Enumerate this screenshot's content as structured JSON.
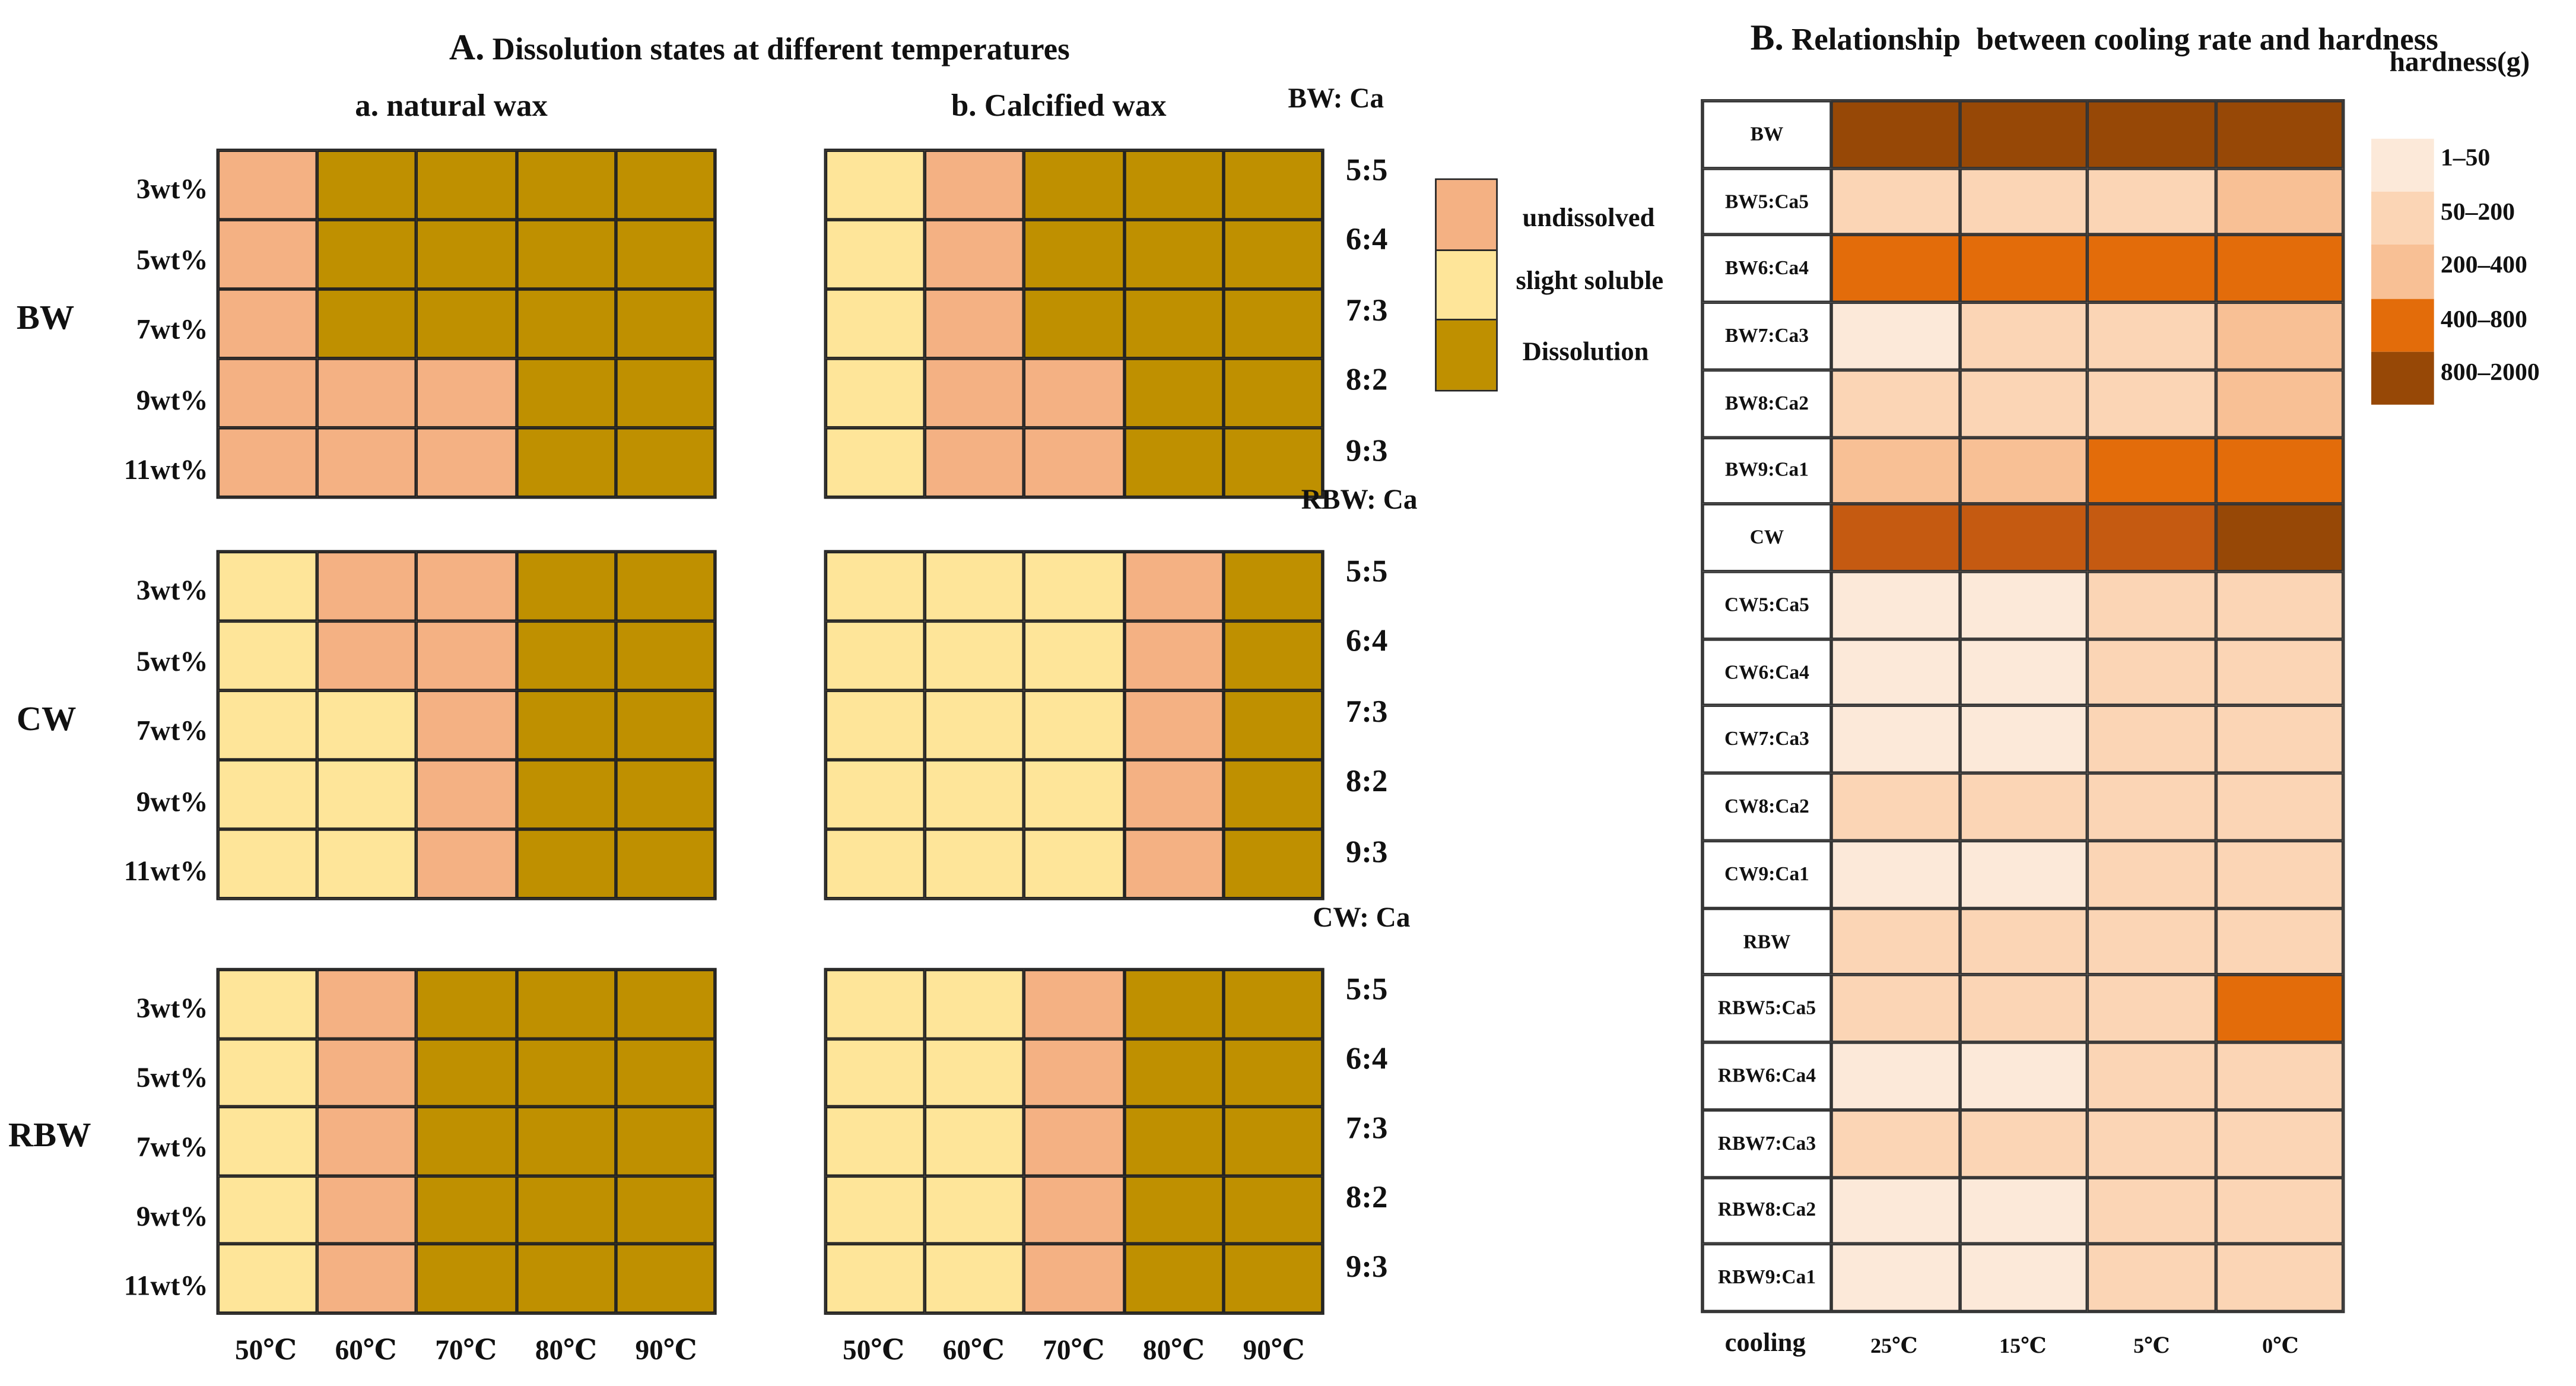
{
  "chart_data": [
    {
      "type": "heatmap",
      "panel": "A",
      "title_letter": "A.",
      "title": "Dissolution states at different temperatures",
      "legend": [
        {
          "code": "U",
          "label": "undissolved",
          "color": "#f4b183"
        },
        {
          "code": "S",
          "label": "slight soluble",
          "color": "#fee599"
        },
        {
          "code": "D",
          "label": "Dissolution",
          "color": "#bf9000"
        }
      ],
      "x_labels": [
        "50℃",
        "60℃",
        "70℃",
        "80℃",
        "90℃"
      ],
      "subpanels": {
        "a": {
          "letter": "a.",
          "title": "natural wax",
          "groups": [
            {
              "name": "BW",
              "rows": [
                "3wt%",
                "5wt%",
                "7wt%",
                "9wt%",
                "11wt%"
              ],
              "values": [
                [
                  "U",
                  "D",
                  "D",
                  "D",
                  "D"
                ],
                [
                  "U",
                  "D",
                  "D",
                  "D",
                  "D"
                ],
                [
                  "U",
                  "D",
                  "D",
                  "D",
                  "D"
                ],
                [
                  "U",
                  "U",
                  "U",
                  "D",
                  "D"
                ],
                [
                  "U",
                  "U",
                  "U",
                  "D",
                  "D"
                ]
              ]
            },
            {
              "name": "CW",
              "rows": [
                "3wt%",
                "5wt%",
                "7wt%",
                "9wt%",
                "11wt%"
              ],
              "values": [
                [
                  "S",
                  "U",
                  "U",
                  "D",
                  "D"
                ],
                [
                  "S",
                  "U",
                  "U",
                  "D",
                  "D"
                ],
                [
                  "S",
                  "S",
                  "U",
                  "D",
                  "D"
                ],
                [
                  "S",
                  "S",
                  "U",
                  "D",
                  "D"
                ],
                [
                  "S",
                  "S",
                  "U",
                  "D",
                  "D"
                ]
              ]
            },
            {
              "name": "RBW",
              "rows": [
                "3wt%",
                "5wt%",
                "7wt%",
                "9wt%",
                "11wt%"
              ],
              "values": [
                [
                  "S",
                  "U",
                  "D",
                  "D",
                  "D"
                ],
                [
                  "S",
                  "U",
                  "D",
                  "D",
                  "D"
                ],
                [
                  "S",
                  "U",
                  "D",
                  "D",
                  "D"
                ],
                [
                  "S",
                  "U",
                  "D",
                  "D",
                  "D"
                ],
                [
                  "S",
                  "U",
                  "D",
                  "D",
                  "D"
                ]
              ]
            }
          ]
        },
        "b": {
          "letter": "b.",
          "title": "Calcified wax",
          "groups": [
            {
              "name": "BW: Ca",
              "rows": [
                "5:5",
                "6:4",
                "7:3",
                "8:2",
                "9:3"
              ],
              "values": [
                [
                  "S",
                  "U",
                  "D",
                  "D",
                  "D"
                ],
                [
                  "S",
                  "U",
                  "D",
                  "D",
                  "D"
                ],
                [
                  "S",
                  "U",
                  "D",
                  "D",
                  "D"
                ],
                [
                  "S",
                  "U",
                  "U",
                  "D",
                  "D"
                ],
                [
                  "S",
                  "U",
                  "U",
                  "D",
                  "D"
                ]
              ]
            },
            {
              "name": "RBW: Ca",
              "rows": [
                "5:5",
                "6:4",
                "7:3",
                "8:2",
                "9:3"
              ],
              "values": [
                [
                  "S",
                  "S",
                  "S",
                  "U",
                  "D"
                ],
                [
                  "S",
                  "S",
                  "S",
                  "U",
                  "D"
                ],
                [
                  "S",
                  "S",
                  "S",
                  "U",
                  "D"
                ],
                [
                  "S",
                  "S",
                  "S",
                  "U",
                  "D"
                ],
                [
                  "S",
                  "S",
                  "S",
                  "U",
                  "D"
                ]
              ]
            },
            {
              "name": "CW: Ca",
              "rows": [
                "5:5",
                "6:4",
                "7:3",
                "8:2",
                "9:3"
              ],
              "values": [
                [
                  "S",
                  "S",
                  "U",
                  "D",
                  "D"
                ],
                [
                  "S",
                  "S",
                  "U",
                  "D",
                  "D"
                ],
                [
                  "S",
                  "S",
                  "U",
                  "D",
                  "D"
                ],
                [
                  "S",
                  "S",
                  "U",
                  "D",
                  "D"
                ],
                [
                  "S",
                  "S",
                  "U",
                  "D",
                  "D"
                ]
              ]
            }
          ]
        }
      }
    },
    {
      "type": "heatmap",
      "panel": "B",
      "title_letter": "B.",
      "title": "Relationship  between cooling rate and hardness",
      "x_axis_label": "cooling",
      "x_labels": [
        "25℃",
        "15℃",
        "5℃",
        "0℃"
      ],
      "legend_title": "hardness(g)",
      "legend": [
        {
          "level": 1,
          "label": "1–50",
          "color": "#fce9d9"
        },
        {
          "level": 2,
          "label": "50–200",
          "color": "#fbd5b5"
        },
        {
          "level": 3,
          "label": "200–400",
          "color": "#f8c095"
        },
        {
          "level": 4,
          "label": "400–800",
          "color": "#e36c0a"
        },
        {
          "level": 5,
          "label": "800–2000",
          "color": "#974806"
        }
      ],
      "extra_colors": {
        "4.5": "#c55a11"
      },
      "rows": [
        "BW",
        "BW5:Ca5",
        "BW6:Ca4",
        "BW7:Ca3",
        "BW8:Ca2",
        "BW9:Ca1",
        "CW",
        "CW5:Ca5",
        "CW6:Ca4",
        "CW7:Ca3",
        "CW8:Ca2",
        "CW9:Ca1",
        "RBW",
        "RBW5:Ca5",
        "RBW6:Ca4",
        "RBW7:Ca3",
        "RBW8:Ca2",
        "RBW9:Ca1"
      ],
      "values": [
        [
          5,
          5,
          5,
          5
        ],
        [
          2,
          2,
          2,
          3
        ],
        [
          4,
          4,
          4,
          4
        ],
        [
          1,
          2,
          2,
          3
        ],
        [
          2,
          2,
          2,
          3
        ],
        [
          3,
          3,
          4,
          4
        ],
        [
          4.5,
          4.5,
          4.5,
          5
        ],
        [
          1,
          1,
          2,
          2
        ],
        [
          1,
          1,
          2,
          2
        ],
        [
          1,
          1,
          2,
          2
        ],
        [
          2,
          2,
          2,
          2
        ],
        [
          1,
          1,
          2,
          2
        ],
        [
          2,
          2,
          2,
          2
        ],
        [
          2,
          2,
          2,
          4
        ],
        [
          1,
          1,
          2,
          2
        ],
        [
          2,
          2,
          2,
          2
        ],
        [
          1,
          1,
          2,
          2
        ],
        [
          1,
          1,
          2,
          2
        ]
      ]
    }
  ]
}
